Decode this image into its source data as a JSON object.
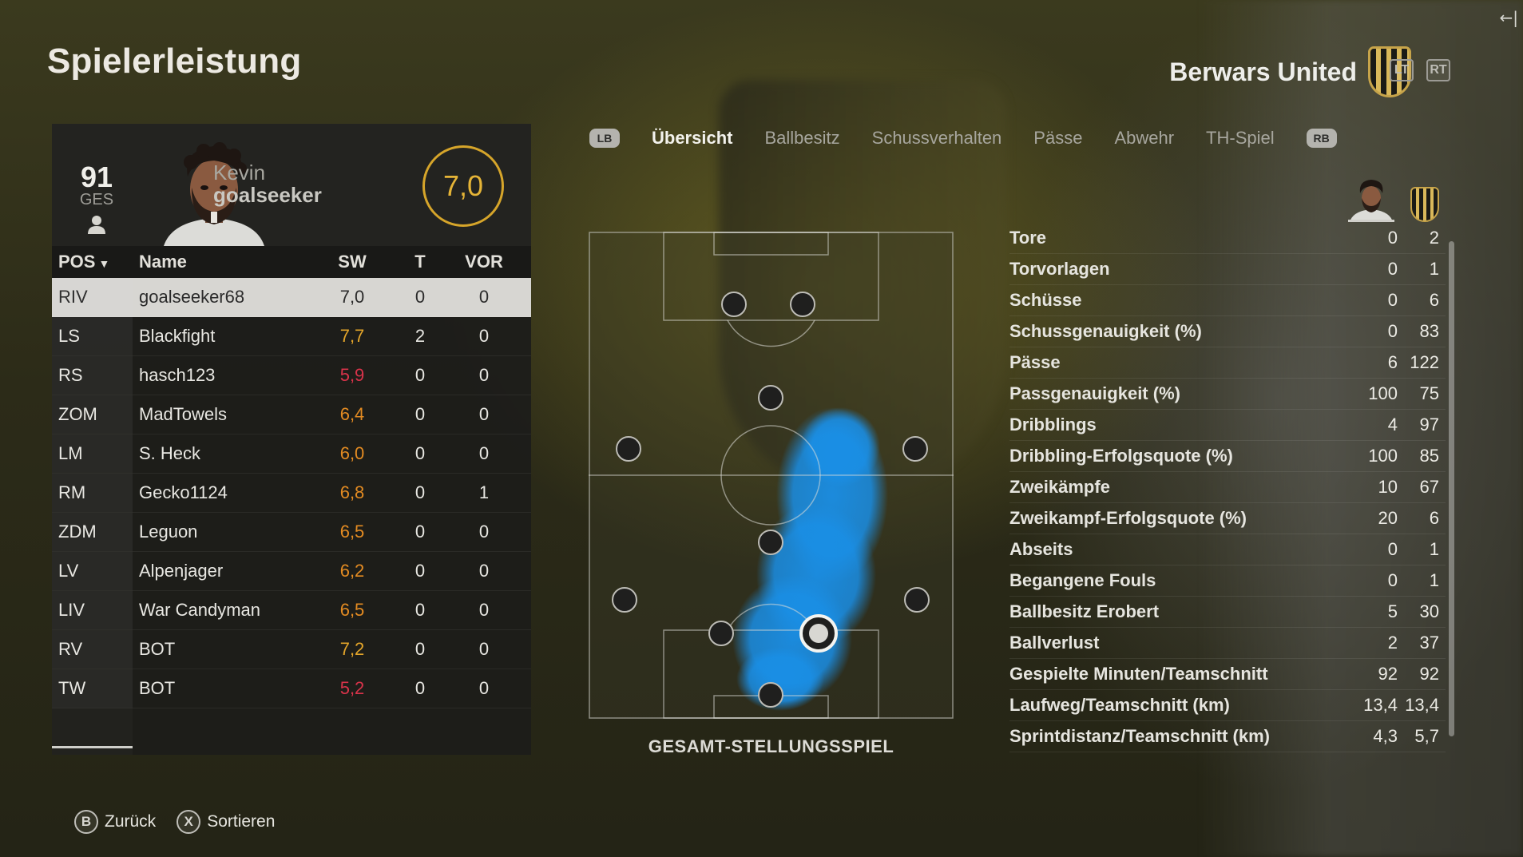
{
  "page_title": "Spielerleistung",
  "team": {
    "name": "Berwars United"
  },
  "triggers": {
    "left": "LT",
    "right": "RT"
  },
  "back_icon": "←|",
  "player": {
    "overall": "91",
    "overall_label": "GES",
    "first_name": "Kevin",
    "last_name": "goalseeker",
    "rating": "7,0"
  },
  "table": {
    "headers": {
      "pos": "POS",
      "name": "Name",
      "sw": "SW",
      "t": "T",
      "vor": "VOR"
    },
    "rows": [
      {
        "pos": "RIV",
        "name": "goalseeker68",
        "sw": "7,0",
        "t": "0",
        "vor": "0",
        "sw_color": "#2b2b2b",
        "selected": true
      },
      {
        "pos": "LS",
        "name": "Blackfight",
        "sw": "7,7",
        "t": "2",
        "vor": "0",
        "sw_color": "#e3a52a"
      },
      {
        "pos": "RS",
        "name": "hasch123",
        "sw": "5,9",
        "t": "0",
        "vor": "0",
        "sw_color": "#d8334a"
      },
      {
        "pos": "ZOM",
        "name": "MadTowels",
        "sw": "6,4",
        "t": "0",
        "vor": "0",
        "sw_color": "#e38b22"
      },
      {
        "pos": "LM",
        "name": "S. Heck",
        "sw": "6,0",
        "t": "0",
        "vor": "0",
        "sw_color": "#e38b22"
      },
      {
        "pos": "RM",
        "name": "Gecko1124",
        "sw": "6,8",
        "t": "0",
        "vor": "1",
        "sw_color": "#e38b22"
      },
      {
        "pos": "ZDM",
        "name": "Leguon",
        "sw": "6,5",
        "t": "0",
        "vor": "0",
        "sw_color": "#e38b22"
      },
      {
        "pos": "LV",
        "name": "Alpenjager",
        "sw": "6,2",
        "t": "0",
        "vor": "0",
        "sw_color": "#e38b22"
      },
      {
        "pos": "LIV",
        "name": "War Candyman",
        "sw": "6,5",
        "t": "0",
        "vor": "0",
        "sw_color": "#e38b22"
      },
      {
        "pos": "RV",
        "name": "BOT",
        "sw": "7,2",
        "t": "0",
        "vor": "0",
        "sw_color": "#e3a52a"
      },
      {
        "pos": "TW",
        "name": "BOT",
        "sw": "5,2",
        "t": "0",
        "vor": "0",
        "sw_color": "#d8334a"
      }
    ]
  },
  "tabs": {
    "lb": "LB",
    "rb": "RB",
    "items": [
      "Übersicht",
      "Ballbesitz",
      "Schussverhalten",
      "Pässe",
      "Abwehr",
      "TH-Spiel"
    ],
    "active": "Übersicht"
  },
  "pitch": {
    "caption": "GESAMT-STELLUNGSSPIEL",
    "heatmap_color": "#1a8fe6"
  },
  "stats": [
    {
      "label": "Tore",
      "player": "0",
      "team": "2"
    },
    {
      "label": "Torvorlagen",
      "player": "0",
      "team": "1"
    },
    {
      "label": "Schüsse",
      "player": "0",
      "team": "6"
    },
    {
      "label": "Schussgenauigkeit (%)",
      "player": "0",
      "team": "83"
    },
    {
      "label": "Pässe",
      "player": "6",
      "team": "122"
    },
    {
      "label": "Passgenauigkeit (%)",
      "player": "100",
      "team": "75"
    },
    {
      "label": "Dribblings",
      "player": "4",
      "team": "97"
    },
    {
      "label": "Dribbling-Erfolgsquote (%)",
      "player": "100",
      "team": "85"
    },
    {
      "label": "Zweikämpfe",
      "player": "10",
      "team": "67"
    },
    {
      "label": "Zweikampf-Erfolgsquote (%)",
      "player": "20",
      "team": "6"
    },
    {
      "label": "Abseits",
      "player": "0",
      "team": "1"
    },
    {
      "label": "Begangene Fouls",
      "player": "0",
      "team": "1"
    },
    {
      "label": "Ballbesitz Erobert",
      "player": "5",
      "team": "30"
    },
    {
      "label": "Ballverlust",
      "player": "2",
      "team": "37"
    },
    {
      "label": "Gespielte Minuten/Teamschnitt",
      "player": "92",
      "team": "92"
    },
    {
      "label": "Laufweg/Teamschnitt (km)",
      "player": "13,4",
      "team": "13,4"
    },
    {
      "label": "Sprintdistanz/Teamschnitt (km)",
      "player": "4,3",
      "team": "5,7"
    }
  ],
  "footer": {
    "back": {
      "glyph": "B",
      "label": "Zurück"
    },
    "sort": {
      "glyph": "X",
      "label": "Sortieren"
    }
  },
  "colors": {
    "accent_gold": "#d6a52a",
    "rating_red": "#d8334a",
    "rating_orange": "#e38b22"
  }
}
